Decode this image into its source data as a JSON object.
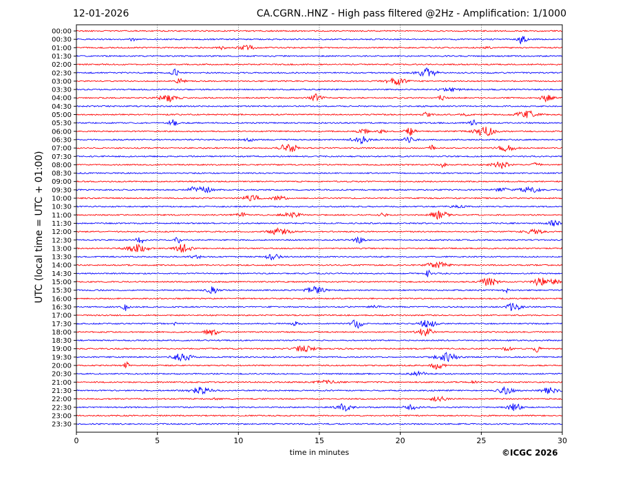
{
  "header": {
    "date": "12-01-2026",
    "title": "CA.CGRN..HNZ - High pass filtered @2Hz - Amplification: 1/1000"
  },
  "footer": {
    "copyright": "©ICGC 2026"
  },
  "chart_data": {
    "type": "line",
    "title": "CA.CGRN..HNZ - High pass filtered @2Hz - Amplification: 1/1000",
    "xlabel": "time in minutes",
    "ylabel": "UTC (local time = UTC + 01:00)",
    "xlim": [
      0,
      30
    ],
    "x_ticks": [
      "0",
      "5",
      "10",
      "15",
      "20",
      "25",
      "30"
    ],
    "grid": "vertical dotted at x ticks",
    "trace_colors": [
      "#ff0000",
      "#0000ff"
    ],
    "rows": [
      "00:00",
      "00:30",
      "01:00",
      "01:30",
      "02:00",
      "02:30",
      "03:00",
      "03:30",
      "04:00",
      "04:30",
      "05:00",
      "05:30",
      "06:00",
      "06:30",
      "07:00",
      "07:30",
      "08:00",
      "08:30",
      "09:00",
      "09:30",
      "10:00",
      "10:30",
      "11:00",
      "11:30",
      "12:00",
      "12:30",
      "13:00",
      "13:30",
      "14:00",
      "14:30",
      "15:00",
      "15:30",
      "16:00",
      "16:30",
      "17:00",
      "17:30",
      "18:00",
      "18:30",
      "19:00",
      "19:30",
      "20:00",
      "20:30",
      "21:00",
      "21:30",
      "22:00",
      "22:30",
      "23:00",
      "23:30"
    ]
  }
}
